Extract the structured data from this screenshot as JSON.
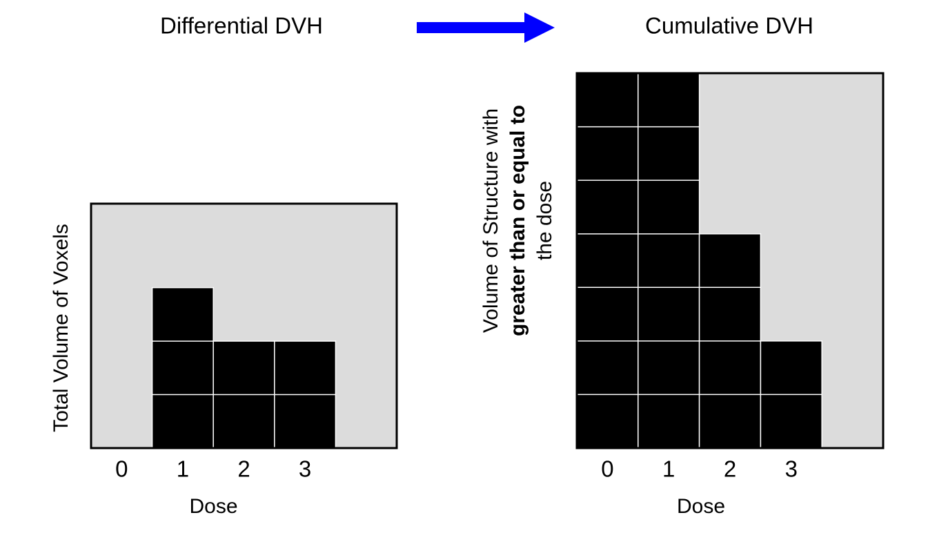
{
  "chart_data": [
    {
      "type": "bar",
      "title": "Differential DVH",
      "xlabel": "Dose",
      "ylabel": [
        "Total Volume of Voxels"
      ],
      "categories": [
        "0",
        "1",
        "2",
        "3",
        null
      ],
      "values": [
        0,
        3,
        2,
        2,
        null
      ],
      "color": "#000000",
      "background": "#dcdcdc",
      "ylim": [
        0,
        4.57
      ]
    },
    {
      "type": "bar",
      "title": "Cumulative DVH",
      "xlabel": "Dose",
      "ylabel": [
        "Volume of Structure with",
        "greater than or equal to",
        "the dose"
      ],
      "categories": [
        "0",
        "1",
        "2",
        "3",
        null
      ],
      "values": [
        7,
        7,
        4,
        2,
        null
      ],
      "color": "#000000",
      "background": "#dcdcdc",
      "ylim": [
        0,
        7
      ]
    }
  ]
}
